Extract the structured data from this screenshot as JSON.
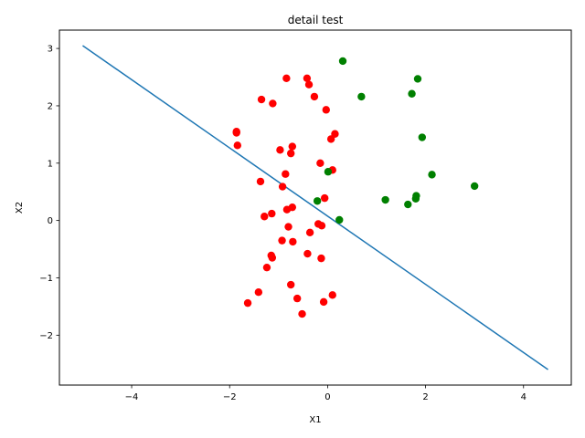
{
  "chart_data": {
    "type": "scatter",
    "title": "detail test",
    "xlabel": "X1",
    "ylabel": "X2",
    "xlim": [
      -5.475,
      4.975
    ],
    "ylim": [
      -2.87,
      3.32
    ],
    "xticks": [
      -4,
      -2,
      0,
      2,
      4
    ],
    "yticks": [
      -2,
      -1,
      0,
      1,
      2,
      3
    ],
    "xtick_labels": [
      "−4",
      "−2",
      "0",
      "2",
      "4"
    ],
    "ytick_labels": [
      "−2",
      "−1",
      "0",
      "1",
      "2",
      "3"
    ],
    "grid": false,
    "colors": {
      "red_series": "#ff0000",
      "green_series": "#008000",
      "line": "#1f77b4"
    },
    "series": [
      {
        "color": "red",
        "points": [
          [
            -0.84,
            2.48
          ],
          [
            -0.42,
            2.48
          ],
          [
            -0.38,
            2.37
          ],
          [
            -1.35,
            2.11
          ],
          [
            -0.27,
            2.16
          ],
          [
            -1.12,
            2.04
          ],
          [
            -0.03,
            1.93
          ],
          [
            -1.86,
            1.55
          ],
          [
            -1.86,
            1.53
          ],
          [
            0.15,
            1.51
          ],
          [
            0.07,
            1.42
          ],
          [
            -1.84,
            1.31
          ],
          [
            -0.72,
            1.29
          ],
          [
            -0.97,
            1.23
          ],
          [
            -0.75,
            1.17
          ],
          [
            -0.15,
            1.0
          ],
          [
            0.1,
            0.88
          ],
          [
            -0.86,
            0.81
          ],
          [
            -1.37,
            0.68
          ],
          [
            -0.92,
            0.59
          ],
          [
            -0.06,
            0.39
          ],
          [
            -0.72,
            0.23
          ],
          [
            -0.83,
            0.19
          ],
          [
            -1.14,
            0.12
          ],
          [
            -1.29,
            0.07
          ],
          [
            -0.19,
            -0.06
          ],
          [
            -0.12,
            -0.09
          ],
          [
            -0.8,
            -0.11
          ],
          [
            -0.36,
            -0.21
          ],
          [
            -0.93,
            -0.35
          ],
          [
            -0.71,
            -0.37
          ],
          [
            -1.15,
            -0.61
          ],
          [
            -0.41,
            -0.58
          ],
          [
            -1.13,
            -0.65
          ],
          [
            -0.13,
            -0.66
          ],
          [
            -1.24,
            -0.82
          ],
          [
            -0.75,
            -1.12
          ],
          [
            -1.41,
            -1.25
          ],
          [
            0.1,
            -1.3
          ],
          [
            -0.62,
            -1.36
          ],
          [
            -0.08,
            -1.42
          ],
          [
            -1.63,
            -1.44
          ],
          [
            -0.52,
            -1.63
          ]
        ]
      },
      {
        "color": "green",
        "points": [
          [
            0.31,
            2.78
          ],
          [
            1.84,
            2.47
          ],
          [
            0.69,
            2.16
          ],
          [
            1.72,
            2.21
          ],
          [
            1.93,
            1.45
          ],
          [
            0.01,
            0.85
          ],
          [
            2.13,
            0.8
          ],
          [
            3.0,
            0.6
          ],
          [
            1.81,
            0.43
          ],
          [
            1.8,
            0.38
          ],
          [
            1.18,
            0.36
          ],
          [
            -0.21,
            0.34
          ],
          [
            1.64,
            0.28
          ],
          [
            0.24,
            0.01
          ]
        ]
      }
    ],
    "line": {
      "x": [
        -5.0,
        4.5
      ],
      "y": [
        3.05,
        -2.6
      ]
    }
  }
}
